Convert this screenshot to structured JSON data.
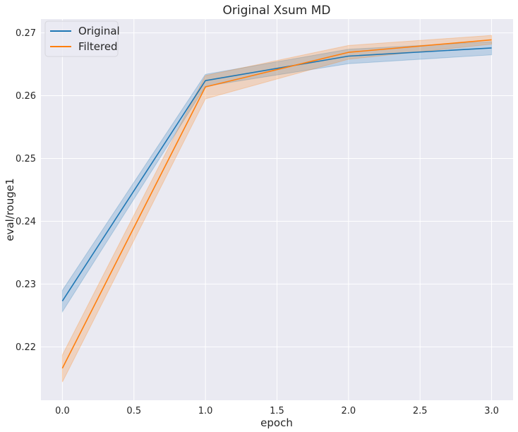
{
  "chart_data": {
    "type": "line",
    "title": "Original Xsum MD",
    "xlabel": "epoch",
    "ylabel": "eval/rouge1",
    "xlim": [
      -0.15,
      3.15
    ],
    "ylim": [
      0.2115,
      0.2722
    ],
    "x_ticks": [
      0.0,
      0.5,
      1.0,
      1.5,
      2.0,
      2.5,
      3.0
    ],
    "x_tick_labels": [
      "0.0",
      "0.5",
      "1.0",
      "1.5",
      "2.0",
      "2.5",
      "3.0"
    ],
    "y_ticks": [
      0.22,
      0.23,
      0.24,
      0.25,
      0.26,
      0.27
    ],
    "y_tick_labels": [
      "0.22",
      "0.23",
      "0.24",
      "0.25",
      "0.26",
      "0.27"
    ],
    "grid": true,
    "legend_position": "top-left",
    "background_color": "#eaeaf2",
    "grid_color": "#ffffff",
    "x": [
      0,
      1,
      2,
      3
    ],
    "series": [
      {
        "name": "Original",
        "color": "#1f77b4",
        "values": [
          0.2273,
          0.2624,
          0.2663,
          0.2676
        ],
        "ci_lower": [
          0.2256,
          0.2615,
          0.2651,
          0.2665
        ],
        "ci_upper": [
          0.229,
          0.2634,
          0.2674,
          0.2686
        ]
      },
      {
        "name": "Filtered",
        "color": "#ff7f0e",
        "values": [
          0.2166,
          0.2614,
          0.2669,
          0.2689
        ],
        "ci_lower": [
          0.2144,
          0.2595,
          0.2658,
          0.2682
        ],
        "ci_upper": [
          0.2187,
          0.2632,
          0.268,
          0.2696
        ]
      }
    ]
  }
}
